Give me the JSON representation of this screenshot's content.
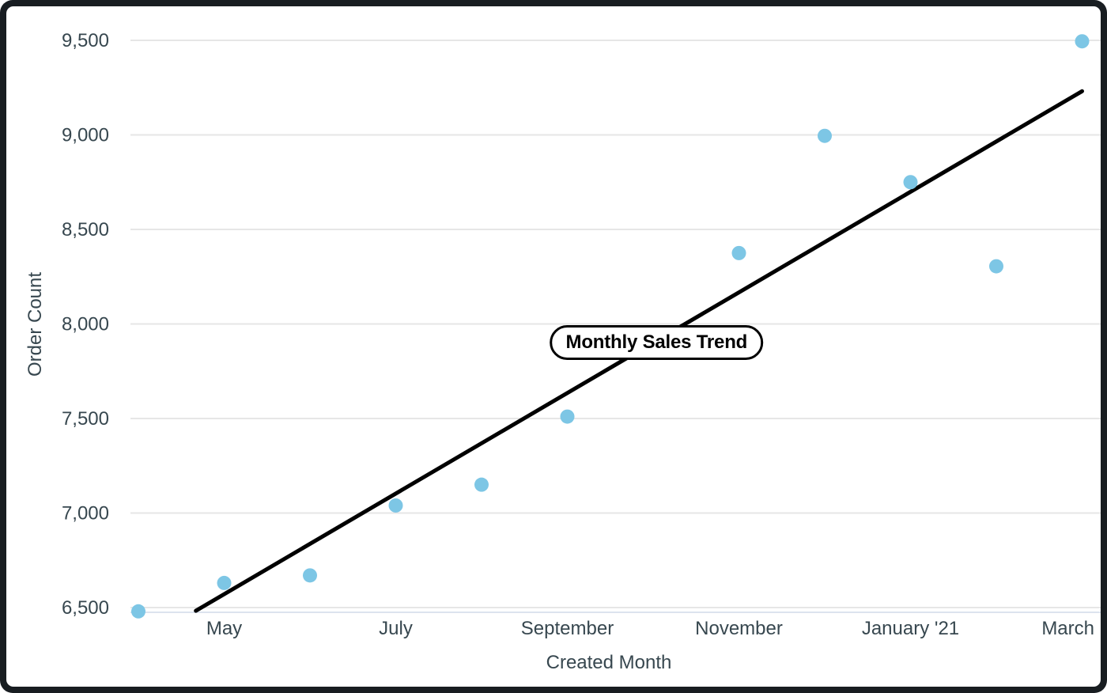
{
  "chart_data": {
    "type": "scatter",
    "title": "Monthly Sales Trend",
    "xlabel": "Created Month",
    "ylabel": "Order Count",
    "ylim": [
      6500,
      9500
    ],
    "grid": "horizontal",
    "legend_position": "none",
    "y_ticks": [
      {
        "value": 6500,
        "label": "6,500"
      },
      {
        "value": 7000,
        "label": "7,000"
      },
      {
        "value": 7500,
        "label": "7,500"
      },
      {
        "value": 8000,
        "label": "8,000"
      },
      {
        "value": 8500,
        "label": "8,500"
      },
      {
        "value": 9000,
        "label": "9,000"
      },
      {
        "value": 9500,
        "label": "9,500"
      }
    ],
    "x_ticks": [
      {
        "month_index": 1,
        "label": "May"
      },
      {
        "month_index": 3,
        "label": "July"
      },
      {
        "month_index": 5,
        "label": "September"
      },
      {
        "month_index": 7,
        "label": "November"
      },
      {
        "month_index": 9,
        "label": "January '21"
      },
      {
        "month_index": 11,
        "label": "March"
      }
    ],
    "points": [
      {
        "month_index": 0,
        "value": 6480
      },
      {
        "month_index": 1,
        "value": 6630
      },
      {
        "month_index": 2,
        "value": 6670
      },
      {
        "month_index": 3,
        "value": 7040
      },
      {
        "month_index": 4,
        "value": 7150
      },
      {
        "month_index": 5,
        "value": 7510
      },
      {
        "month_index": 7,
        "value": 8375
      },
      {
        "month_index": 8,
        "value": 8995
      },
      {
        "month_index": 9,
        "value": 8750
      },
      {
        "month_index": 10,
        "value": 8305
      },
      {
        "month_index": 11,
        "value": 9495
      }
    ],
    "trendline": {
      "start": {
        "month_index": 0.67,
        "value": 6483
      },
      "end": {
        "month_index": 11,
        "value": 9231
      }
    },
    "annotation": {
      "label": "Monthly Sales Trend",
      "month_index": 6.04,
      "value": 7900
    },
    "colors": {
      "point": "#7DC6E5",
      "trendline": "#000000",
      "gridline": "#e6e6e6",
      "axis_baseline": "#dce3ee",
      "tick_text": "#37474f",
      "axis_title_text": "#37474f",
      "annotation_bg": "#ffffff",
      "annotation_border": "#000000",
      "frame": "#181d21"
    }
  }
}
